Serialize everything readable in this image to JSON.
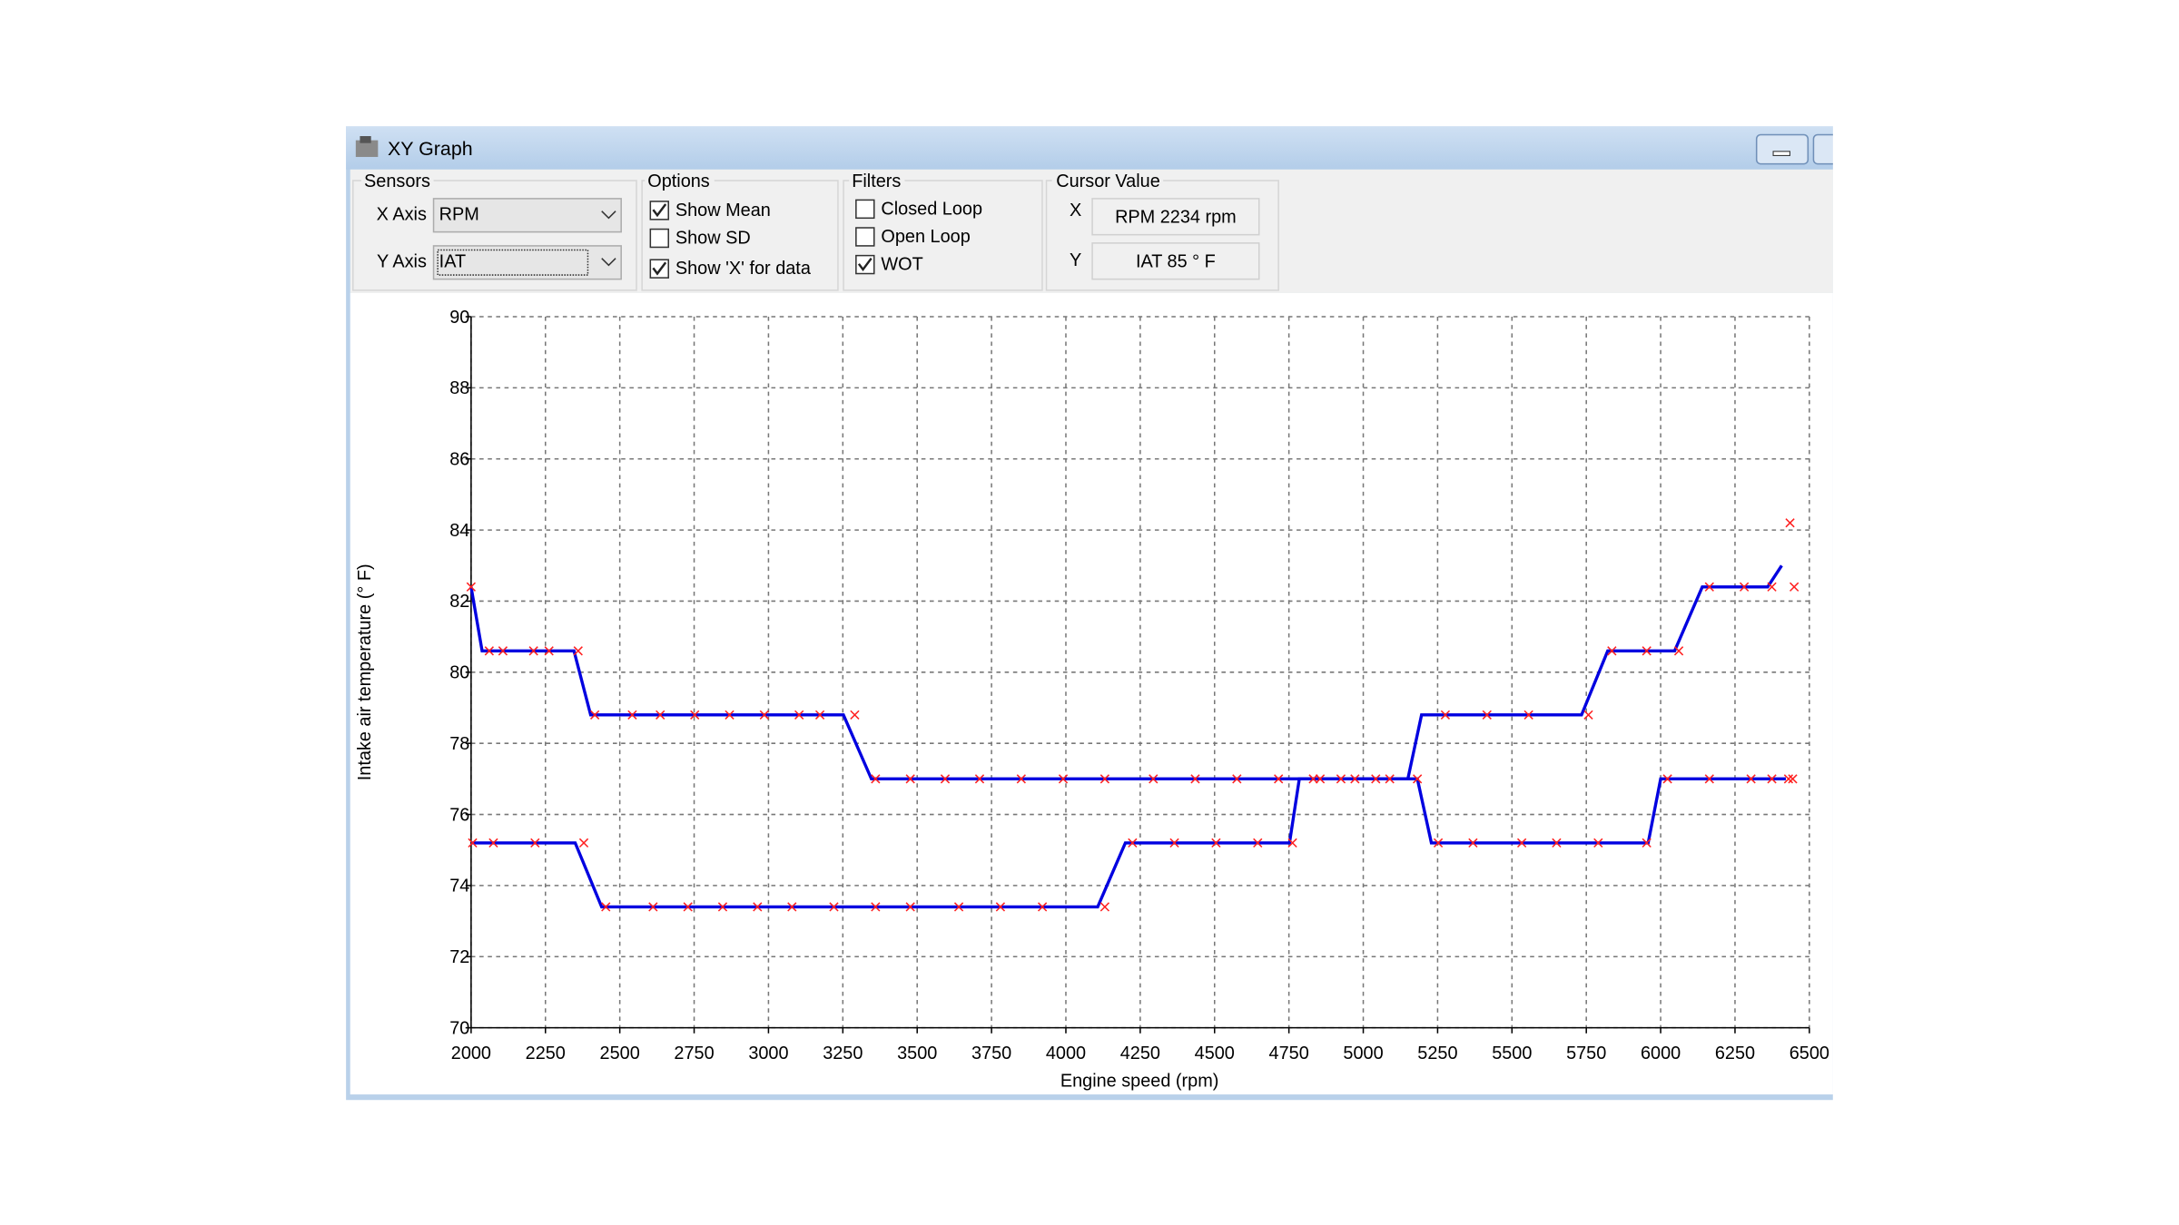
{
  "window": {
    "title": "XY Graph"
  },
  "sensors": {
    "title": "Sensors",
    "x_label": "X Axis",
    "x_value": "RPM",
    "y_label": "Y Axis",
    "y_value": "IAT"
  },
  "options": {
    "title": "Options",
    "items": [
      {
        "label": "Show Mean",
        "checked": true
      },
      {
        "label": "Show SD",
        "checked": false
      },
      {
        "label": "Show 'X' for data",
        "checked": true
      }
    ]
  },
  "filters": {
    "title": "Filters",
    "items": [
      {
        "label": "Closed Loop",
        "checked": false
      },
      {
        "label": "Open Loop",
        "checked": false
      },
      {
        "label": "WOT",
        "checked": true
      }
    ]
  },
  "cursor": {
    "title": "Cursor Value",
    "x_label": "X",
    "x_value": "RPM 2234 rpm",
    "y_label": "Y",
    "y_value": "IAT 85 ° F"
  },
  "chart_data": {
    "type": "line",
    "xlabel": "Engine speed (rpm)",
    "ylabel": "Intake air temperature (° F)",
    "xlim": [
      2000,
      6500
    ],
    "ylim": [
      70,
      90
    ],
    "xticks": [
      2000,
      2250,
      2500,
      2750,
      3000,
      3250,
      3500,
      3750,
      4000,
      4250,
      4500,
      4750,
      5000,
      5250,
      5500,
      5750,
      6000,
      6250,
      6500
    ],
    "yticks": [
      70,
      72,
      74,
      76,
      78,
      80,
      82,
      84,
      86,
      88,
      90
    ],
    "grid": true,
    "series": [
      {
        "style": "line",
        "color": "#0000e0",
        "x": [
          2000,
          2037,
          2346,
          2402,
          3252,
          3346,
          5150,
          5196,
          5734,
          5822,
          6047,
          6140,
          6360,
          6407
        ],
        "values": [
          82.4,
          80.6,
          80.6,
          78.8,
          78.8,
          77.0,
          77.0,
          78.8,
          78.8,
          80.6,
          80.6,
          82.4,
          82.4,
          83.0
        ]
      },
      {
        "style": "line",
        "color": "#0000e0",
        "x": [
          2000,
          2350,
          2439,
          4107,
          4200,
          4752,
          4785,
          5182,
          5229,
          5958,
          6000,
          6421
        ],
        "values": [
          75.2,
          75.2,
          73.4,
          73.4,
          75.2,
          75.2,
          77.0,
          77.0,
          75.2,
          75.2,
          77.0,
          77.0
        ]
      },
      {
        "style": "x",
        "color": "#ff2020",
        "x": [
          2000,
          2061,
          2107,
          2210,
          2262,
          2360,
          2416,
          2542,
          2636,
          2752,
          2869,
          2986,
          3103,
          3173,
          3290,
          3360,
          3477,
          3594,
          3710,
          3850,
          3991,
          4131,
          4294,
          4435,
          4575,
          4715,
          4855,
          4972,
          5089,
          5182,
          5276,
          5416,
          5556,
          5757,
          5836,
          5953,
          6061,
          6164,
          6281,
          6374,
          6435,
          6449,
          6430,
          6444,
          2005,
          2075,
          2215,
          2379,
          2453,
          2612,
          2729,
          2846,
          2963,
          3079,
          3220,
          3360,
          3477,
          3640,
          3780,
          3921,
          4131,
          4224,
          4365,
          4505,
          4645,
          4762,
          4832,
          4925,
          5042,
          5252,
          5369,
          5533,
          5650,
          5790,
          5953,
          6023,
          6164,
          6304,
          6374
        ],
        "values": [
          82.4,
          80.6,
          80.6,
          80.6,
          80.6,
          80.6,
          78.8,
          78.8,
          78.8,
          78.8,
          78.8,
          78.8,
          78.8,
          78.8,
          78.8,
          77.0,
          77.0,
          77.0,
          77.0,
          77.0,
          77.0,
          77.0,
          77.0,
          77.0,
          77.0,
          77.0,
          77.0,
          77.0,
          77.0,
          77.0,
          78.8,
          78.8,
          78.8,
          78.8,
          80.6,
          80.6,
          80.6,
          82.4,
          82.4,
          82.4,
          84.2,
          82.4,
          77.0,
          77.0,
          75.2,
          75.2,
          75.2,
          75.2,
          73.4,
          73.4,
          73.4,
          73.4,
          73.4,
          73.4,
          73.4,
          73.4,
          73.4,
          73.4,
          73.4,
          73.4,
          73.4,
          75.2,
          75.2,
          75.2,
          75.2,
          75.2,
          77.0,
          77.0,
          77.0,
          75.2,
          75.2,
          75.2,
          75.2,
          75.2,
          75.2,
          77.0,
          77.0,
          77.0,
          77.0
        ]
      }
    ]
  }
}
